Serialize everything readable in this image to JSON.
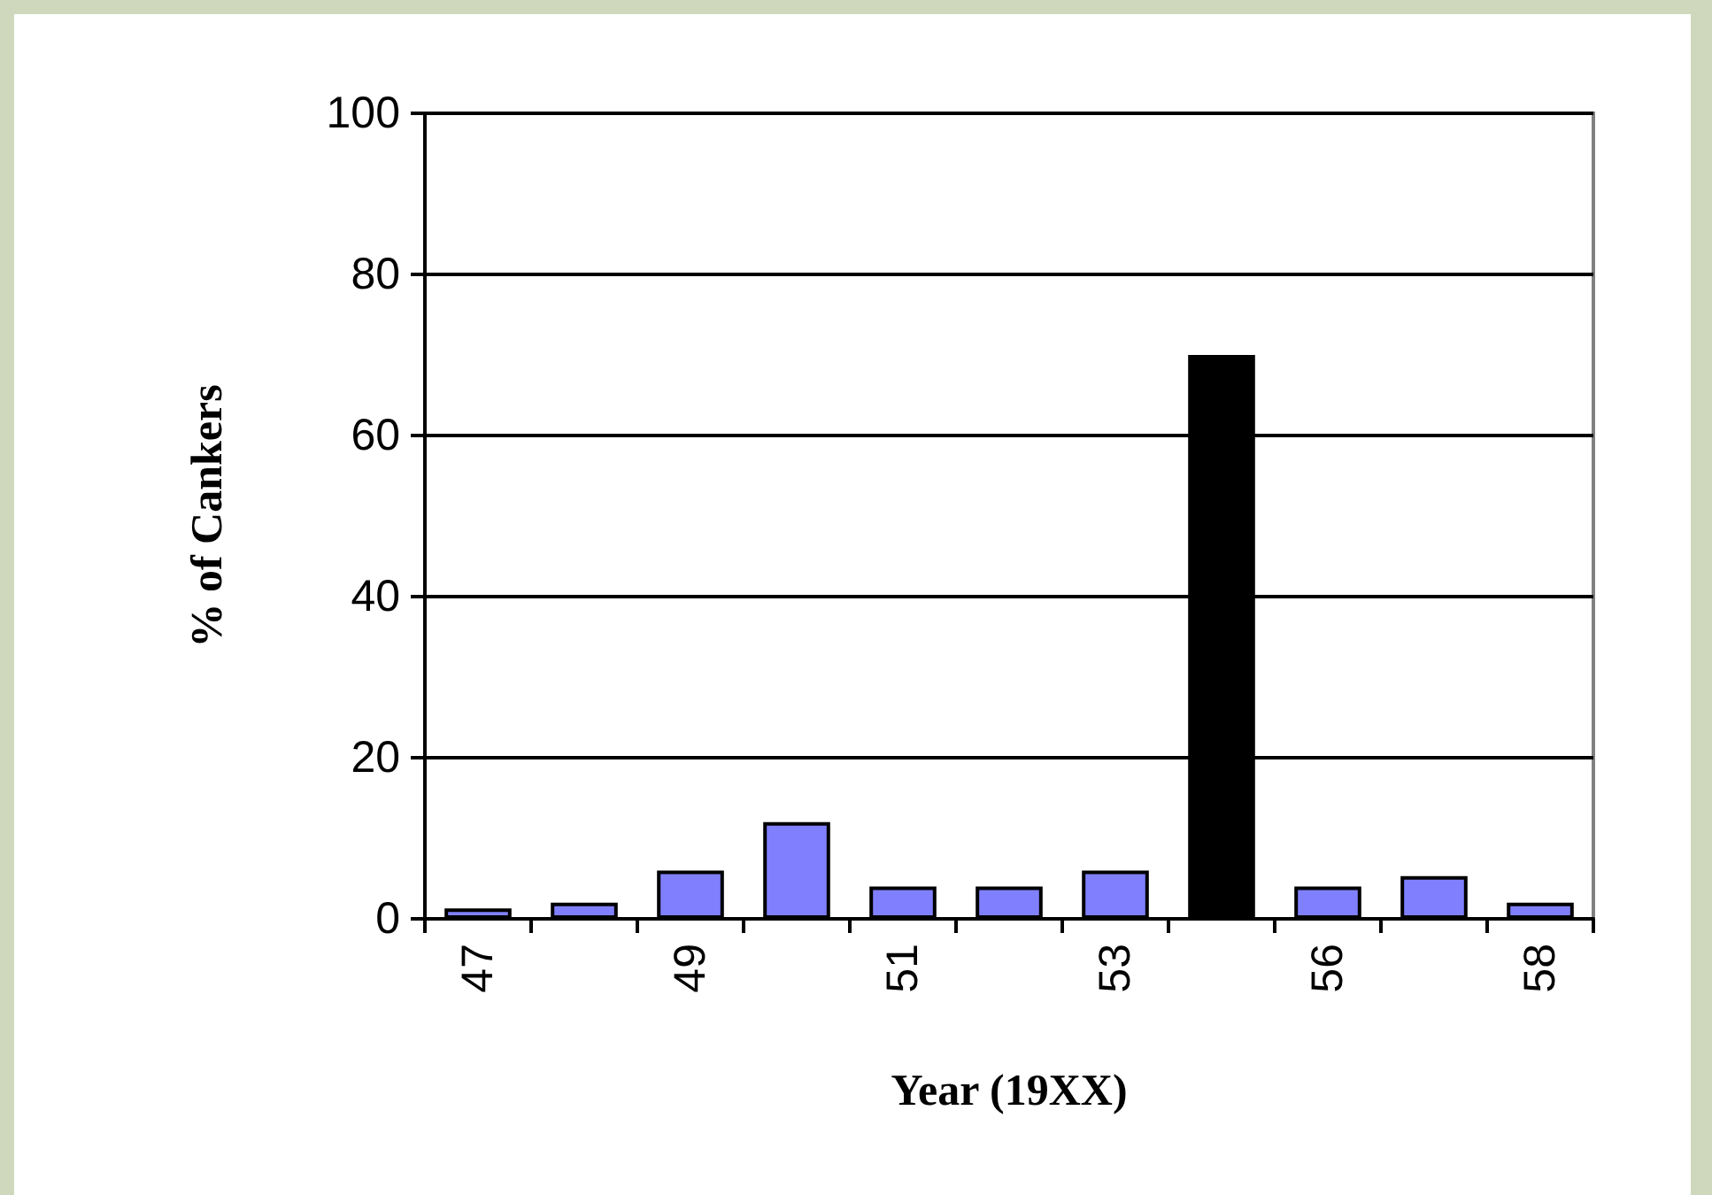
{
  "chart_data": {
    "type": "bar",
    "xlabel": "Year (19XX)",
    "ylabel": "% of Cankers",
    "categories": [
      "47",
      null,
      "49",
      null,
      "51",
      null,
      "53",
      null,
      "56",
      null,
      "58"
    ],
    "values": [
      1.3,
      2,
      6,
      12,
      4,
      4,
      6,
      70,
      4,
      5.3,
      2
    ],
    "colors": [
      "#8080ff",
      "#8080ff",
      "#8080ff",
      "#8080ff",
      "#8080ff",
      "#8080ff",
      "#8080ff",
      "#000000",
      "#8080ff",
      "#8080ff",
      "#8080ff"
    ],
    "ylim": [
      0,
      100
    ],
    "yticks": [
      0,
      20,
      40,
      60,
      80,
      100
    ],
    "grid": "y"
  }
}
